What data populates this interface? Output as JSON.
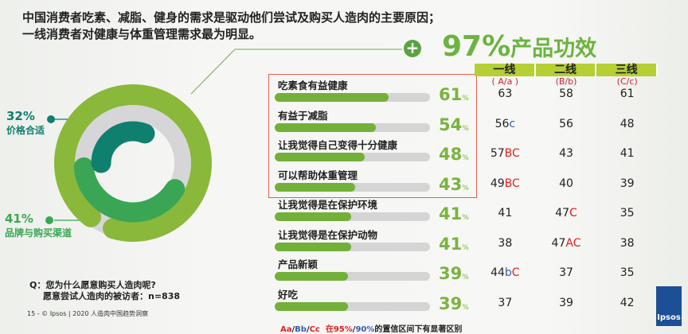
{
  "title_line1": "中国消费者吃素、减脂、健身的需求是驱动他们尝试及购买人造肉的主要原因；",
  "title_line2": "一线消费者对健康与体重管理需求最为明显。",
  "headline": {
    "plus": "+",
    "pct": "97%",
    "label": "产品功效"
  },
  "donut": {
    "rings": [
      {
        "label": "产品功效",
        "value": 97,
        "color": "#8ab83a"
      },
      {
        "label": "品牌与购买渠道",
        "value": 41,
        "pct_text": "41%",
        "color": "#3aa655"
      },
      {
        "label": "价格合适",
        "value": 32,
        "pct_text": "32%",
        "color": "#0f7f6e"
      }
    ]
  },
  "chart_data": {
    "type": "bar",
    "categories": [
      "吃素食有益健康",
      "有益于减脂",
      "让我觉得自己变得十分健康",
      "可以帮助体重管理",
      "让我觉得是在保护环境",
      "让我觉得是在保护动物",
      "产品新颖",
      "好吃"
    ],
    "values": [
      61,
      54,
      48,
      43,
      41,
      41,
      39,
      39
    ],
    "value_suffix": "%",
    "bar_color": "#72b03a",
    "track_color": "#d5d5d5",
    "table": {
      "headers": [
        "一线",
        "二线",
        "三线"
      ],
      "subheaders": [
        "( A/a )",
        "(B/b)",
        "(C/c)"
      ],
      "rows": [
        [
          [
            "63",
            ""
          ],
          [
            "58",
            ""
          ],
          [
            "61",
            ""
          ]
        ],
        [
          [
            "56",
            "c"
          ],
          [
            "56",
            ""
          ],
          [
            "48",
            ""
          ]
        ],
        [
          [
            "57",
            "BC"
          ],
          [
            "43",
            ""
          ],
          [
            "41",
            ""
          ]
        ],
        [
          [
            "49",
            "BC"
          ],
          [
            "40",
            ""
          ],
          [
            "39",
            ""
          ]
        ],
        [
          [
            "41",
            ""
          ],
          [
            "47",
            "C"
          ],
          [
            "35",
            ""
          ]
        ],
        [
          [
            "38",
            ""
          ],
          [
            "47",
            "AC"
          ],
          [
            "38",
            ""
          ]
        ],
        [
          [
            "44",
            "bC"
          ],
          [
            "37",
            ""
          ],
          [
            "35",
            ""
          ]
        ],
        [
          [
            "37",
            ""
          ],
          [
            "39",
            ""
          ],
          [
            "42",
            ""
          ]
        ]
      ]
    }
  },
  "question": {
    "line1": "Q：您为什么愿意购买人造肉呢?",
    "line2": "愿意尝试人造肉的被访者：n=838"
  },
  "footer": "15 -  © Ipsos | 2020 人造肉中国趋势洞察",
  "legend": {
    "aa": "Aa",
    "bb": "Bb",
    "cc": "Cc",
    "p95": "在95%",
    "p90": "90%",
    "rest": "的置信区间下有显著区别"
  },
  "logo": "Ipsos"
}
